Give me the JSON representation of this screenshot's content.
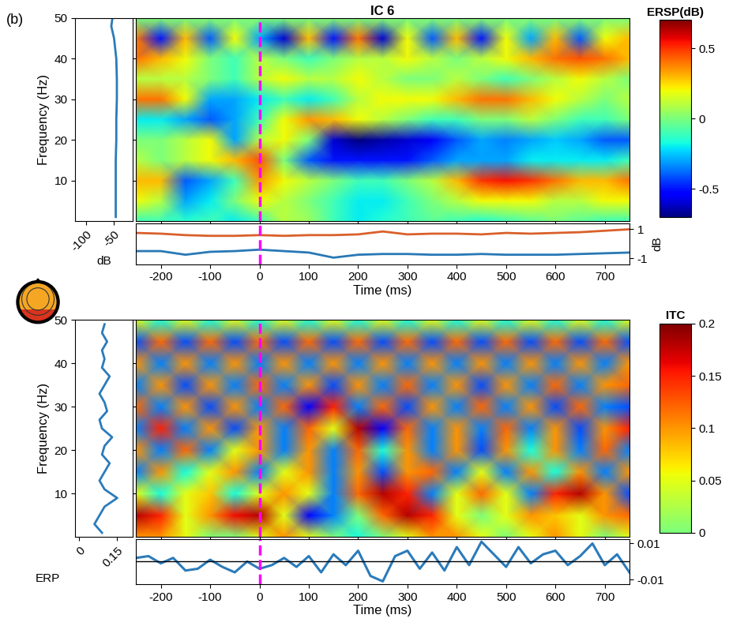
{
  "chart_data": [
    {
      "type": "heatmap",
      "title": "IC 6",
      "annotations": [
        "(b)"
      ],
      "x": [
        -250,
        -200,
        -150,
        -100,
        -50,
        0,
        50,
        100,
        150,
        200,
        250,
        300,
        350,
        400,
        450,
        500,
        550,
        600,
        650,
        700,
        750
      ],
      "y": [
        0,
        5,
        10,
        15,
        20,
        25,
        30,
        35,
        40,
        45,
        50
      ],
      "cells": [
        [
          -0.1,
          -0.1,
          -0.15,
          -0.1,
          -0.2,
          -0.1,
          0.1,
          0.05,
          -0.1,
          -0.2,
          -0.15,
          -0.1,
          -0.05,
          -0.1,
          -0.15,
          -0.1,
          -0.05,
          0.0,
          -0.05,
          -0.1,
          -0.1
        ],
        [
          0.2,
          0.1,
          -0.3,
          -0.2,
          0.0,
          0.2,
          0.1,
          0.0,
          -0.1,
          -0.2,
          -0.2,
          -0.1,
          0.0,
          0.1,
          0.2,
          0.2,
          0.2,
          0.1,
          0.1,
          0.2,
          0.2
        ],
        [
          0.3,
          0.3,
          -0.4,
          -0.3,
          -0.1,
          0.35,
          0.2,
          0.1,
          0.0,
          -0.1,
          -0.1,
          0.0,
          0.1,
          0.3,
          0.5,
          0.55,
          0.5,
          0.4,
          0.3,
          0.3,
          0.4
        ],
        [
          0.1,
          0.0,
          0.1,
          0.2,
          0.3,
          0.45,
          0.0,
          -0.4,
          -0.5,
          -0.5,
          -0.5,
          -0.5,
          -0.4,
          -0.3,
          -0.3,
          -0.3,
          -0.2,
          -0.2,
          -0.2,
          -0.2,
          -0.1
        ],
        [
          0.0,
          0.0,
          0.1,
          0.2,
          -0.3,
          0.1,
          0.2,
          0.0,
          -0.6,
          -0.7,
          -0.65,
          -0.6,
          -0.55,
          -0.4,
          -0.3,
          -0.35,
          -0.3,
          -0.25,
          -0.3,
          -0.4,
          -0.4
        ],
        [
          -0.2,
          -0.2,
          -0.3,
          -0.4,
          -0.3,
          -0.1,
          0.2,
          0.35,
          0.3,
          0.2,
          0.1,
          0.0,
          -0.1,
          -0.1,
          0.0,
          0.0,
          0.1,
          0.0,
          -0.1,
          -0.1,
          0.0
        ],
        [
          0.4,
          0.4,
          0.2,
          -0.3,
          -0.3,
          -0.2,
          -0.1,
          -0.2,
          -0.1,
          0.1,
          0.2,
          0.2,
          0.2,
          0.3,
          0.4,
          0.4,
          0.3,
          0.2,
          0.1,
          0.0,
          0.1
        ],
        [
          0.1,
          0.1,
          0.1,
          0.0,
          -0.1,
          0.1,
          0.2,
          0.1,
          0.1,
          0.2,
          0.1,
          0.0,
          0.0,
          0.1,
          0.0,
          -0.1,
          0.0,
          0.1,
          0.2,
          0.1,
          0.0
        ],
        [
          0.4,
          0.3,
          0.2,
          0.0,
          -0.1,
          0.1,
          0.0,
          -0.1,
          0.0,
          0.1,
          0.1,
          0.2,
          0.1,
          0.0,
          0.1,
          0.2,
          0.3,
          0.4,
          0.45,
          0.4,
          0.3
        ],
        [
          0.4,
          -0.5,
          0.3,
          -0.4,
          0.2,
          -0.3,
          -0.6,
          0.3,
          -0.5,
          0.4,
          -0.6,
          0.2,
          -0.4,
          0.3,
          -0.5,
          0.2,
          -0.3,
          0.3,
          -0.4,
          0.2,
          0.3
        ],
        [
          0.0,
          0.0,
          0.0,
          0.0,
          0.0,
          0.0,
          0.0,
          0.0,
          0.0,
          0.0,
          0.0,
          0.0,
          0.0,
          0.0,
          0.0,
          0.0,
          0.0,
          0.0,
          0.0,
          0.0,
          0.0
        ]
      ],
      "xlim": [
        -250,
        750
      ],
      "ylim": [
        0,
        50
      ],
      "xticks": [
        -200,
        -100,
        0,
        100,
        200,
        300,
        400,
        500,
        600,
        700
      ],
      "yticks": [
        10,
        20,
        30,
        40,
        50
      ],
      "tick_labels": false,
      "vlines": [
        0
      ],
      "color_range": [
        -0.7,
        0.7
      ],
      "colorbar_label": "ERSP(dB)",
      "colorbar_range": [
        -0.7,
        0.7
      ],
      "colorbar_ticks": [
        -0.5,
        0,
        0.5
      ]
    },
    {
      "type": "line",
      "x": [
        -47,
        -47,
        -47,
        -47,
        -46,
        -46,
        -45,
        -45,
        -46,
        -50,
        -55,
        -53
      ],
      "y": [
        1,
        5,
        10,
        15,
        20,
        25,
        30,
        35,
        40,
        45,
        48,
        50
      ],
      "color": "#2b7bba",
      "xlim": [
        -120,
        -17
      ],
      "ylim": [
        0,
        50
      ],
      "xticks": [
        -100,
        -50
      ],
      "yticks": [
        10,
        20,
        30,
        40,
        50
      ],
      "xlabel": "dB",
      "ylabel": "Frequency (Hz)"
    },
    {
      "type": "line",
      "x": [
        -250,
        -200,
        -150,
        -100,
        -50,
        0,
        50,
        100,
        150,
        200,
        250,
        300,
        350,
        400,
        450,
        500,
        550,
        600,
        650,
        700,
        750
      ],
      "series": [
        {
          "color": "#d9602b",
          "values": [
            0.75,
            0.7,
            0.6,
            0.55,
            0.55,
            0.6,
            0.55,
            0.6,
            0.6,
            0.65,
            0.85,
            0.65,
            0.7,
            0.7,
            0.65,
            0.75,
            0.7,
            0.75,
            0.8,
            0.9,
            1.0
          ]
        },
        {
          "color": "#2878b5",
          "values": [
            -0.5,
            -0.5,
            -0.75,
            -0.55,
            -0.5,
            -0.4,
            -0.5,
            -0.6,
            -0.95,
            -0.75,
            -0.7,
            -0.7,
            -0.75,
            -0.75,
            -0.7,
            -0.75,
            -0.75,
            -0.75,
            -0.7,
            -0.65,
            -0.6
          ]
        }
      ],
      "xlim": [
        -250,
        750
      ],
      "ylim": [
        -1.4,
        1.4
      ],
      "xticks": [
        -200,
        -100,
        0,
        100,
        200,
        300,
        400,
        500,
        600,
        700
      ],
      "yticks": [
        -1,
        1
      ],
      "xlabel": "Time (ms)",
      "ylabel": "dB",
      "vlines": [
        0
      ]
    },
    {
      "type": "heatmap",
      "x": [
        -250,
        -200,
        -150,
        -100,
        -50,
        0,
        50,
        100,
        150,
        200,
        250,
        300,
        350,
        400,
        450,
        500,
        550,
        600,
        650,
        700,
        750
      ],
      "y": [
        0,
        5,
        10,
        15,
        20,
        25,
        30,
        35,
        40,
        45,
        50
      ],
      "cells": [
        [
          0.1,
          0.1,
          0.05,
          0.0,
          0.0,
          0.05,
          0.1,
          0.05,
          0.0,
          -0.05,
          0.0,
          0.05,
          0.1,
          0.1,
          0.05,
          0.0,
          0.05,
          0.1,
          0.05,
          0.0,
          0.05
        ],
        [
          0.18,
          0.15,
          0.05,
          0.1,
          0.16,
          0.18,
          0.05,
          -0.15,
          -0.1,
          0.0,
          0.12,
          0.18,
          0.15,
          0.05,
          0.0,
          0.05,
          0.1,
          0.08,
          0.05,
          0.1,
          0.12
        ],
        [
          0.05,
          -0.05,
          0.05,
          0.08,
          -0.05,
          0.05,
          0.1,
          0.05,
          -0.1,
          0.12,
          0.18,
          0.15,
          -0.1,
          0.05,
          0.12,
          0.05,
          -0.1,
          0.15,
          0.18,
          0.1,
          -0.12
        ],
        [
          -0.1,
          0.1,
          -0.05,
          0.05,
          0.1,
          -0.1,
          0.05,
          0.1,
          -0.1,
          0.1,
          -0.12,
          0.1,
          0.12,
          -0.1,
          0.05,
          -0.1,
          0.1,
          -0.05,
          0.1,
          -0.1,
          0.1
        ],
        [
          0.1,
          -0.1,
          0.12,
          -0.1,
          0.05,
          0.1,
          -0.1,
          0.1,
          -0.1,
          0.12,
          -0.05,
          0.1,
          -0.1,
          0.1,
          -0.12,
          0.1,
          -0.05,
          0.1,
          -0.1,
          0.12,
          -0.1
        ],
        [
          -0.1,
          0.15,
          -0.1,
          0.1,
          -0.12,
          0.1,
          -0.1,
          0.12,
          0.05,
          0.18,
          -0.15,
          0.12,
          -0.1,
          0.1,
          -0.1,
          0.12,
          -0.1,
          0.1,
          -0.12,
          0.1,
          0.15
        ],
        [
          0.12,
          -0.1,
          0.1,
          -0.12,
          0.1,
          -0.1,
          0.12,
          -0.15,
          0.15,
          -0.1,
          0.12,
          -0.12,
          0.1,
          -0.1,
          0.12,
          -0.1,
          0.1,
          -0.12,
          0.12,
          -0.1,
          -0.12
        ],
        [
          -0.1,
          0.1,
          -0.12,
          0.1,
          -0.1,
          0.12,
          -0.1,
          0.1,
          -0.12,
          0.1,
          -0.1,
          0.12,
          -0.1,
          0.1,
          -0.12,
          0.1,
          -0.1,
          0.12,
          -0.1,
          0.1,
          0.12
        ],
        [
          0.1,
          -0.1,
          0.1,
          -0.1,
          0.1,
          -0.1,
          0.1,
          -0.1,
          0.1,
          -0.1,
          0.1,
          -0.1,
          0.1,
          -0.1,
          0.1,
          -0.1,
          0.1,
          -0.1,
          0.1,
          -0.1,
          0.1
        ],
        [
          -0.12,
          0.12,
          -0.12,
          0.12,
          -0.12,
          0.12,
          -0.12,
          0.12,
          -0.12,
          0.12,
          -0.12,
          0.12,
          -0.12,
          0.12,
          -0.12,
          0.12,
          -0.12,
          0.12,
          -0.12,
          0.12,
          -0.12
        ],
        [
          0.05,
          -0.05,
          0.05,
          -0.05,
          0.05,
          -0.05,
          0.05,
          -0.05,
          0.05,
          -0.05,
          0.05,
          -0.05,
          0.05,
          -0.05,
          0.05,
          -0.05,
          0.05,
          -0.05,
          0.05,
          -0.05,
          0.05
        ]
      ],
      "xlim": [
        -250,
        750
      ],
      "ylim": [
        0,
        50
      ],
      "xticks": [
        -200,
        -100,
        0,
        100,
        200,
        300,
        400,
        500,
        600,
        700
      ],
      "yticks": [
        10,
        20,
        30,
        40,
        50
      ],
      "tick_labels": false,
      "vlines": [
        0
      ],
      "color_range": [
        -0.2,
        0.2
      ],
      "colorbar_label": "ITC",
      "colorbar_range": [
        0,
        0.2
      ],
      "colorbar_ticks": [
        0,
        0.05,
        0.1,
        0.15,
        0.2
      ]
    },
    {
      "type": "line",
      "x": [
        0.09,
        0.06,
        0.08,
        0.1,
        0.15,
        0.1,
        0.08,
        0.1,
        0.12,
        0.09,
        0.1,
        0.13,
        0.09,
        0.08,
        0.11,
        0.1,
        0.08,
        0.1,
        0.12,
        0.09,
        0.1,
        0.09,
        0.11,
        0.09,
        0.1
      ],
      "y": [
        1,
        3,
        5,
        7,
        9,
        11,
        13,
        15,
        17,
        19,
        21,
        23,
        25,
        27,
        29,
        31,
        33,
        35,
        37,
        39,
        41,
        43,
        45,
        47,
        49
      ],
      "color": "#2b7bba",
      "xlim": [
        -0.016,
        0.21
      ],
      "ylim": [
        0,
        50
      ],
      "xticks": [
        0,
        0.15
      ],
      "yticks": [
        10,
        20,
        30,
        40,
        50
      ],
      "ylabel": "Frequency (Hz)"
    },
    {
      "type": "line",
      "x": [
        -250,
        -225,
        -200,
        -175,
        -150,
        -125,
        -100,
        -75,
        -50,
        -25,
        0,
        25,
        50,
        75,
        100,
        125,
        150,
        175,
        200,
        225,
        250,
        275,
        300,
        325,
        350,
        375,
        400,
        425,
        450,
        475,
        500,
        525,
        550,
        575,
        600,
        625,
        650,
        675,
        700,
        725,
        750
      ],
      "values": [
        0.002,
        0.003,
        -0.001,
        0.002,
        -0.005,
        -0.004,
        0.001,
        -0.003,
        -0.006,
        0.0,
        -0.004,
        -0.002,
        0.002,
        -0.003,
        0.003,
        -0.006,
        0.004,
        -0.002,
        0.006,
        -0.008,
        -0.011,
        0.003,
        0.006,
        -0.004,
        0.005,
        -0.005,
        0.008,
        -0.002,
        0.011,
        0.004,
        -0.003,
        0.008,
        -0.001,
        0.004,
        0.006,
        -0.002,
        0.003,
        0.01,
        -0.002,
        0.004,
        -0.006
      ],
      "color": "#2b7bba",
      "hlines": [
        0
      ],
      "vlines": [
        0
      ],
      "xlim": [
        -250,
        750
      ],
      "ylim": [
        -0.0125,
        0.0125
      ],
      "xticks": [
        -200,
        -100,
        0,
        100,
        200,
        300,
        400,
        500,
        600,
        700
      ],
      "yticks": [
        -0.01,
        0.01
      ],
      "xlabel": "Time (ms)",
      "ylabel": "ERP"
    }
  ]
}
